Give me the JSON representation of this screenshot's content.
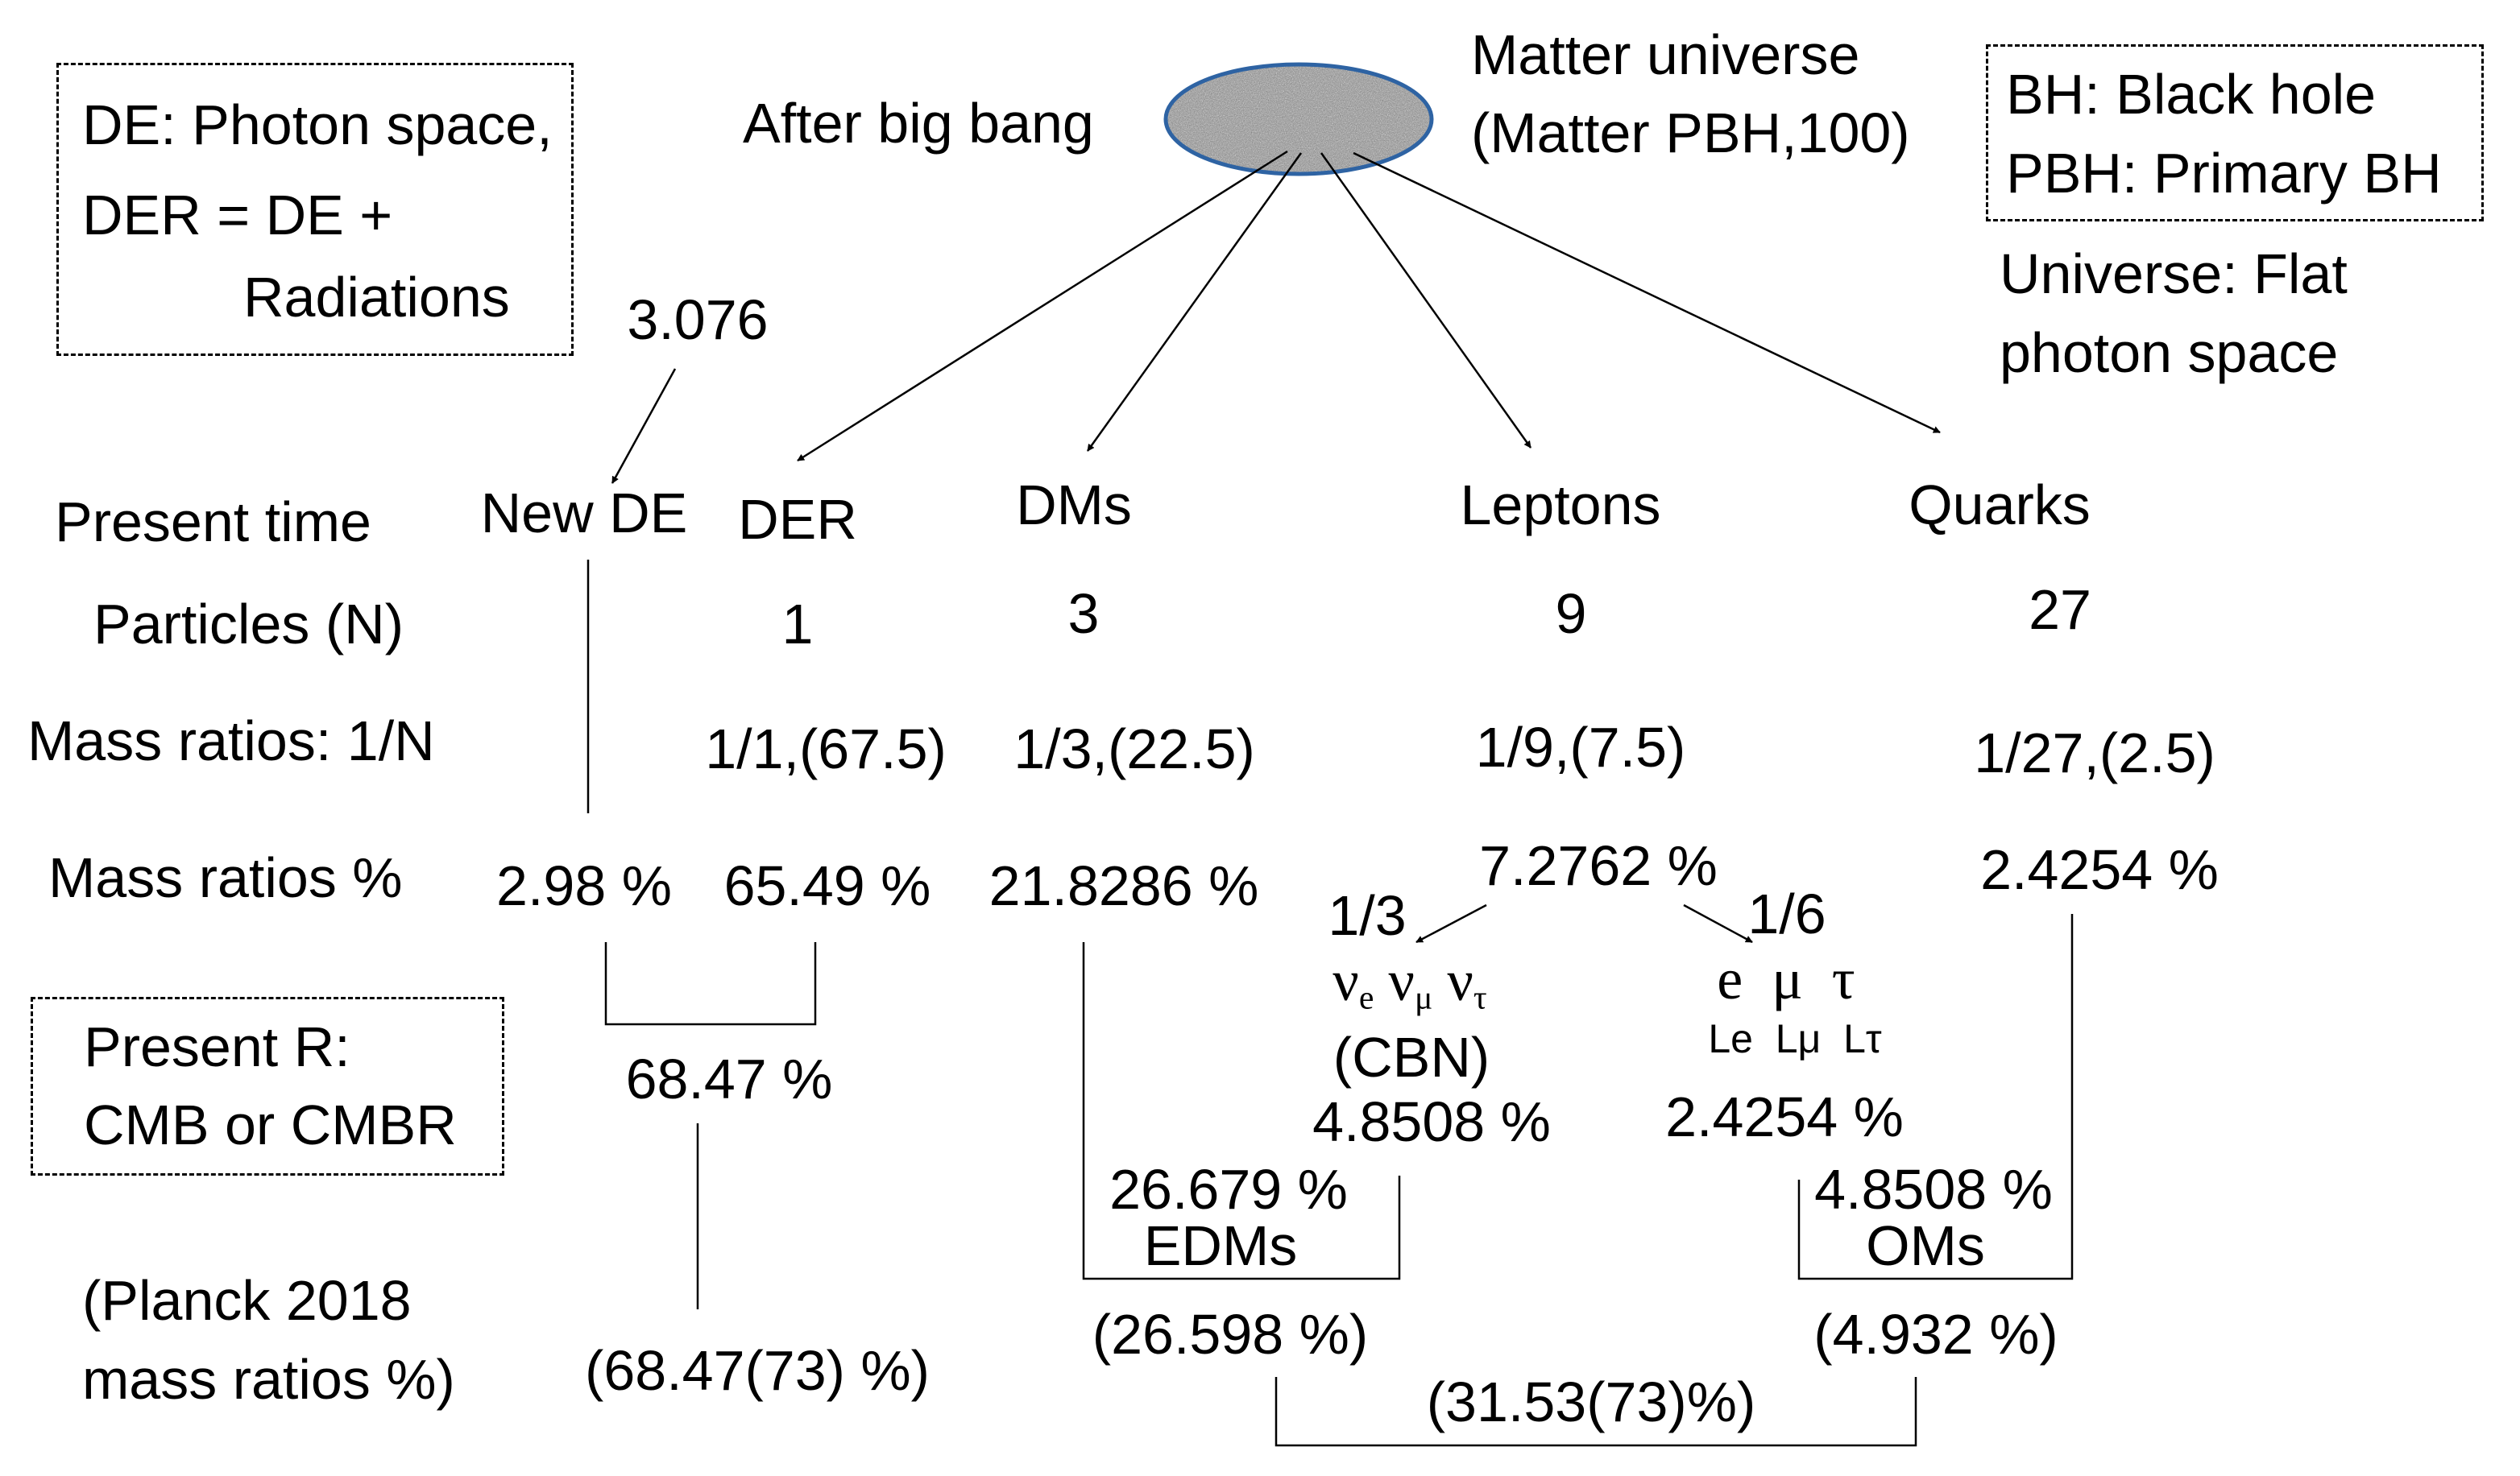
{
  "legend_left": {
    "line1": "DE: Photon space,",
    "line2": "DER = DE +",
    "line3": "Radiations"
  },
  "legend_right": {
    "line1": "BH: Black hole",
    "line2": "PBH: Primary BH"
  },
  "universe_note": {
    "line1": "Universe: Flat",
    "line2": "photon space"
  },
  "present_r_box": {
    "line1": "Present R:",
    "line2": "CMB or CMBR"
  },
  "top": {
    "after_big_bang": "After big bang",
    "matter_universe_line1": "Matter universe",
    "matter_universe_line2": "(Matter PBH,100)",
    "value_3076": "3.076"
  },
  "row_labels": {
    "present_time": "Present time",
    "particles": "Particles (N)",
    "mass_ratios_1n": "Mass ratios: 1/N",
    "mass_ratios_pct": "Mass ratios %",
    "planck_line1": "(Planck 2018",
    "planck_line2": "mass ratios %)"
  },
  "columns": {
    "new_de": {
      "name": "New DE",
      "pct": "2.98 %"
    },
    "der": {
      "name": "DER",
      "n": "1",
      "ratio": "1/1,(67.5)",
      "pct": "65.49 %"
    },
    "dms": {
      "name": "DMs",
      "n": "3",
      "ratio": "1/3,(22.5)",
      "pct": "21.8286 %"
    },
    "leptons": {
      "name": "Leptons",
      "n": "9",
      "ratio": "1/9,(7.5)",
      "pct": "7.2762 %"
    },
    "quarks": {
      "name": "Quarks",
      "n": "27",
      "ratio": "1/27,(2.5)",
      "pct": "2.4254 %"
    }
  },
  "neutrinos": {
    "fraction": "1/3",
    "nu": "ν",
    "sub_e": "e",
    "sub_mu": "μ",
    "sub_tau": "τ",
    "cbn": "(CBN)",
    "pct": "4.8508 %"
  },
  "charged_leptons": {
    "fraction": "1/6",
    "symbols": "e  μ  τ",
    "labels": "Le  Lμ  Lτ",
    "pct": "2.4254 %"
  },
  "sums": {
    "de_der": "68.47 %",
    "edm_value": "26.679 %",
    "edm_label": "EDMs",
    "om_value": "4.8508 %",
    "om_label": "OMs"
  },
  "planck": {
    "de": "(68.47(73) %)",
    "dm": "(26.598 %)",
    "om": "(4.932 %)",
    "matter": "(31.53(73)%)"
  }
}
